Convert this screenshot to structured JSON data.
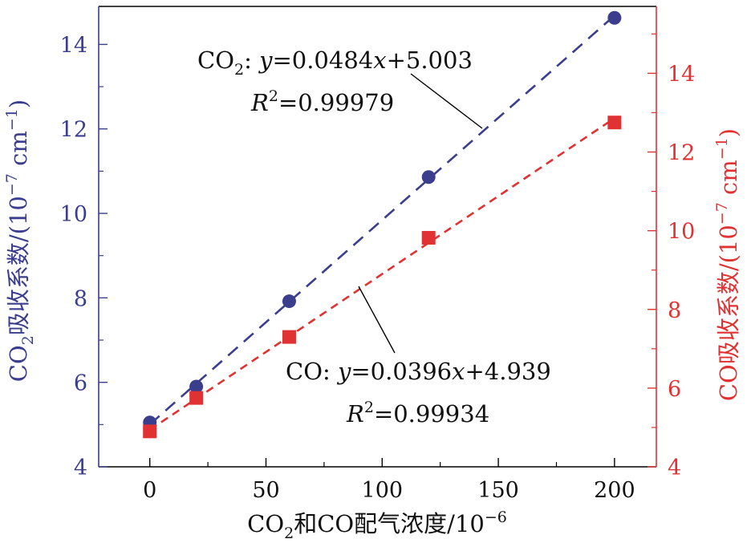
{
  "chart_data": {
    "type": "scatter",
    "title": "",
    "xlabel_parts": {
      "a": "CO",
      "sub": "2",
      "b": "和CO配气浓度/10",
      "sup": "−6"
    },
    "ylabel_left_parts": {
      "a": "CO",
      "sub": "2",
      "b": "吸收系数/(10",
      "sup1": "−7",
      "c": " cm",
      "sup2": "−1",
      "d": ")"
    },
    "ylabel_right_parts": {
      "a": "CO吸收系数/(10",
      "sup1": "−7",
      "c": " cm",
      "sup2": "−1",
      "d": ")"
    },
    "xlim": [
      -22,
      218
    ],
    "ylim_left": [
      4,
      14.9
    ],
    "ylim_right": [
      4,
      15.7
    ],
    "x_ticks": [
      0,
      50,
      100,
      150,
      200
    ],
    "x_tick_labels": [
      "0",
      "50",
      "100",
      "150",
      "200"
    ],
    "y_left_ticks": [
      4,
      6,
      8,
      10,
      12,
      14
    ],
    "y_left_tick_labels": [
      "4",
      "6",
      "8",
      "10",
      "12",
      "14"
    ],
    "y_right_ticks": [
      4,
      6,
      8,
      10,
      12,
      14
    ],
    "y_right_tick_labels": [
      "4",
      "6",
      "8",
      "10",
      "12",
      "14"
    ],
    "grid": false,
    "series": [
      {
        "name": "CO2",
        "axis": "left",
        "marker": "circle",
        "color": "#3a3e8c",
        "x": [
          0,
          20,
          60,
          120,
          200
        ],
        "values": [
          5.05,
          5.9,
          7.92,
          10.86,
          14.63
        ],
        "fit": {
          "slope": 0.0484,
          "intercept": 5.003
        },
        "annotation": {
          "species": "CO",
          "sub": "2",
          "eq_prefix": ": ",
          "eq_y": "y",
          "eq_mid": "=0.0484",
          "eq_x": "x",
          "eq_tail": "+5.003",
          "r_label": "R",
          "r_sup": "2",
          "r_value": "=0.99979"
        }
      },
      {
        "name": "CO",
        "axis": "right",
        "marker": "square",
        "color": "#e03232",
        "x": [
          0,
          20,
          60,
          120,
          200
        ],
        "values": [
          4.9,
          5.75,
          7.3,
          9.82,
          12.75
        ],
        "fit": {
          "slope": 0.0396,
          "intercept": 4.939
        },
        "annotation": {
          "species": "CO",
          "sub": "",
          "eq_prefix": ": ",
          "eq_y": "y",
          "eq_mid": "=0.0396",
          "eq_x": "x",
          "eq_tail": "+4.939",
          "r_label": "R",
          "r_sup": "2",
          "r_value": "=0.99934"
        }
      }
    ],
    "colors": {
      "axis_left": "#3a3e8c",
      "axis_right": "#e03232",
      "frame": "#000000"
    }
  }
}
